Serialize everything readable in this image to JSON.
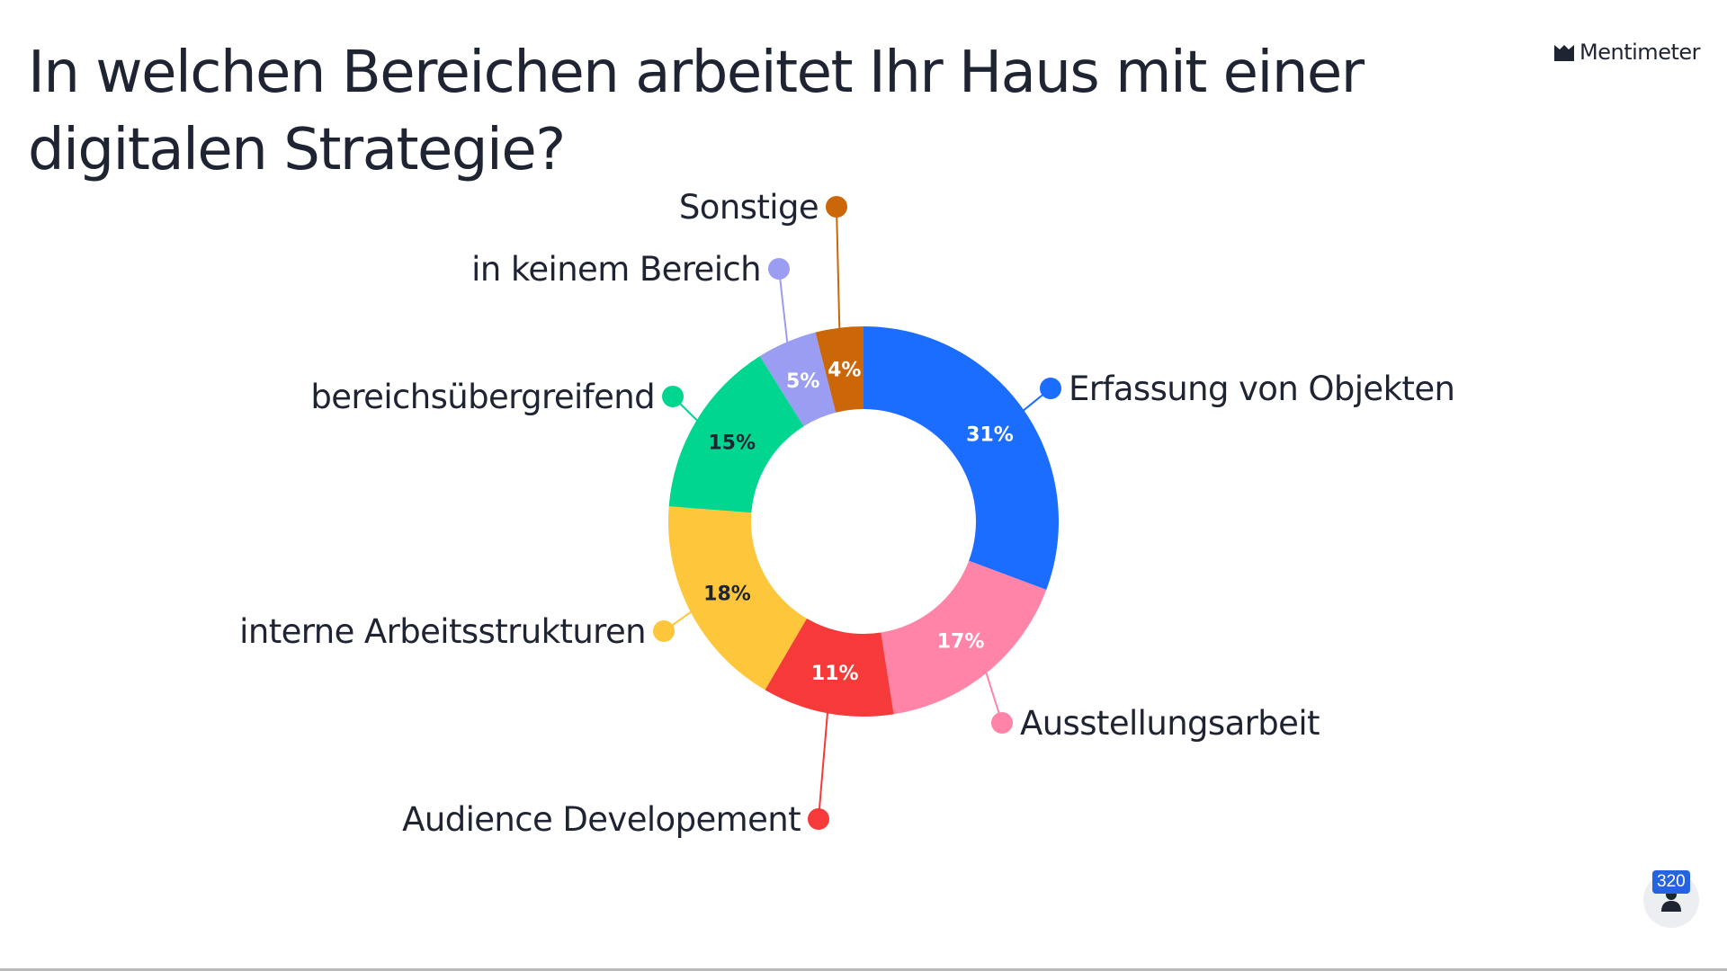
{
  "header": {
    "title": "In welchen Bereichen arbeitet Ihr Haus mit einer digitalen Strategie?",
    "brand": "Mentimeter"
  },
  "participants": {
    "count": "320",
    "icon": "person-icon"
  },
  "chart_data": {
    "type": "pie",
    "variant": "donut",
    "start_angle_deg": 0,
    "direction": "clockwise",
    "slices": [
      {
        "label": "Erfassung von Objekten",
        "value": 31,
        "value_label": "31%",
        "color": "#1a6dff",
        "text_color": "#ffffff",
        "label_side": "right"
      },
      {
        "label": "Ausstellungsarbeit",
        "value": 17,
        "value_label": "17%",
        "color": "#ff84a8",
        "text_color": "#ffffff",
        "label_side": "right"
      },
      {
        "label": "Audience Developement",
        "value": 11,
        "value_label": "11%",
        "color": "#f63a3a",
        "text_color": "#ffffff",
        "label_side": "left"
      },
      {
        "label": "interne Arbeitsstrukturen",
        "value": 18,
        "value_label": "18%",
        "color": "#fec63b",
        "text_color": "#1f2433",
        "label_side": "left"
      },
      {
        "label": "bereichsübergreifend",
        "value": 15,
        "value_label": "15%",
        "color": "#00d68f",
        "text_color": "#1f2433",
        "label_side": "left"
      },
      {
        "label": "in keinem Bereich",
        "value": 5,
        "value_label": "5%",
        "color": "#9b9df2",
        "text_color": "#ffffff",
        "label_side": "left"
      },
      {
        "label": "Sonstige",
        "value": 4,
        "value_label": "4%",
        "color": "#cc6709",
        "text_color": "#ffffff",
        "label_side": "left"
      }
    ]
  }
}
